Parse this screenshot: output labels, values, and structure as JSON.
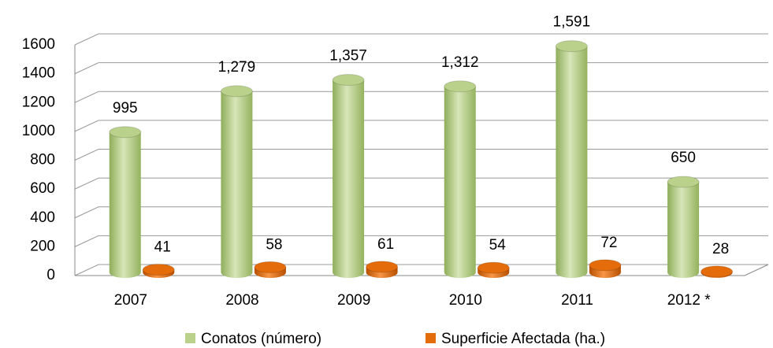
{
  "chart_data": {
    "type": "bar",
    "categories": [
      "2007",
      "2008",
      "2009",
      "2010",
      "2011",
      "2012 *"
    ],
    "series": [
      {
        "name": "Conatos (número)",
        "color": "#b9d18a",
        "values": [
          995,
          1279,
          1357,
          1312,
          1591,
          650
        ],
        "value_labels": [
          "995",
          "1,279",
          "1,357",
          "1,312",
          "1,591",
          "650"
        ]
      },
      {
        "name": "Superficie Afectada (ha.)",
        "color": "#e46c0a",
        "values": [
          41,
          58,
          61,
          54,
          72,
          28
        ]
      }
    ],
    "ylim": [
      0,
      1600
    ],
    "yticks": [
      0,
      200,
      400,
      600,
      800,
      1000,
      1200,
      1400,
      1600
    ],
    "grid": true,
    "legend": "bottom"
  }
}
